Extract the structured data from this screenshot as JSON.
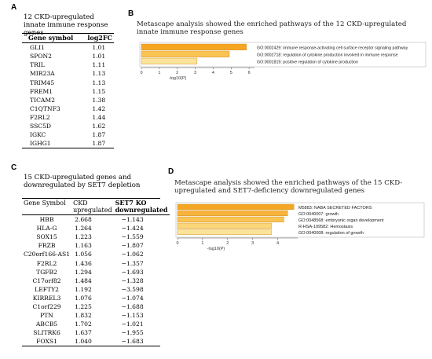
{
  "panels": {
    "A": {
      "label": "A",
      "title": "12 CKD-upregulated innate immune response genes",
      "headers": [
        "Gene symbol",
        "log2FC"
      ],
      "rows": [
        [
          "GLI1",
          "1.01"
        ],
        [
          "SPON2",
          "1.01"
        ],
        [
          "TRIL",
          "1.11"
        ],
        [
          "MIR23A",
          "1.13"
        ],
        [
          "TRIM45",
          "1.13"
        ],
        [
          "FREM1",
          "1.15"
        ],
        [
          "TICAM2",
          "1.38"
        ],
        [
          "C1QTNF3",
          "1.42"
        ],
        [
          "F2RL2",
          "1.44"
        ],
        [
          "SSC5D",
          "1.62"
        ],
        [
          "IGKC",
          "1.87"
        ],
        [
          "IGHG1",
          "1.87"
        ]
      ]
    },
    "B": {
      "label": "B",
      "title": "Metascape analysis showed the enriched pathways of the 12 CKD-upregulated innate immune response genes"
    },
    "C": {
      "label": "C",
      "title": "15 CKD-upregulated genes and downregulated by SET7 depletion",
      "headers": [
        "Gene Symbol",
        "CKD upregulated",
        "SET7 KO downregulated"
      ],
      "rows": [
        [
          "HBB",
          "2.668",
          "−1.143"
        ],
        [
          "HLA-G",
          "1.264",
          "−1.424"
        ],
        [
          "SOX15",
          "1.223",
          "−1.559"
        ],
        [
          "FRZB",
          "1.163",
          "−1.807"
        ],
        [
          "C20orf166-AS1",
          "1.056",
          "−1.062"
        ],
        [
          "F2RL2",
          "1.436",
          "−1.357"
        ],
        [
          "TGFB2",
          "1.294",
          "−1.693"
        ],
        [
          "C17orf82",
          "1.484",
          "−1.328"
        ],
        [
          "LEFTY2",
          "1.192",
          "−3.598"
        ],
        [
          "KIRREL3",
          "1.076",
          "−1.074"
        ],
        [
          "C1orf229",
          "1.225",
          "−1.688"
        ],
        [
          "PTN",
          "1.832",
          "−1.153"
        ],
        [
          "ABCB5",
          "1.702",
          "−1.021"
        ],
        [
          "SLITRK6",
          "1.637",
          "−1.955"
        ],
        [
          "FOXS1",
          "1.040",
          "−1.683"
        ]
      ]
    },
    "D": {
      "label": "D",
      "title": "Metascape analysis showed the enriched pathways of the 15 CKD- upregulated and SET7-deficiency downregulated genes"
    }
  },
  "chart_data": [
    {
      "type": "bar",
      "orientation": "horizontal",
      "categories": [
        "GO:0002429: immune response-activating cell surface receptor signaling pathway",
        "GO:0002718: regulation of cytokine production involved in immune response",
        "GO:0001819: positive regulation of cytokine production"
      ],
      "values": [
        5.85,
        4.9,
        3.1
      ],
      "xlabel": "-log10(P)",
      "xticks": [
        "0",
        "1",
        "2",
        "3",
        "4",
        "5",
        "6"
      ],
      "xlim": [
        0,
        6.3
      ],
      "colors": [
        "#f5a623",
        "#f9c453",
        "#fce39a"
      ]
    },
    {
      "type": "bar",
      "orientation": "horizontal",
      "categories": [
        "M5883: NABA SECRETED FACTORS",
        "GO:0040007: growth",
        "GO:0048568: embryonic organ development",
        "R-HSA-109582: Hemostasis",
        "GO:0040008: regulation of growth"
      ],
      "values": [
        4.65,
        4.4,
        4.25,
        3.75,
        3.75
      ],
      "xlabel": "-log10(P)",
      "xticks": [
        "0",
        "1",
        "2",
        "3",
        "4"
      ],
      "xlim": [
        0,
        4.8
      ],
      "colors": [
        "#f5a623",
        "#f7b33c",
        "#f9c453",
        "#fbd678",
        "#fce39a"
      ]
    }
  ]
}
